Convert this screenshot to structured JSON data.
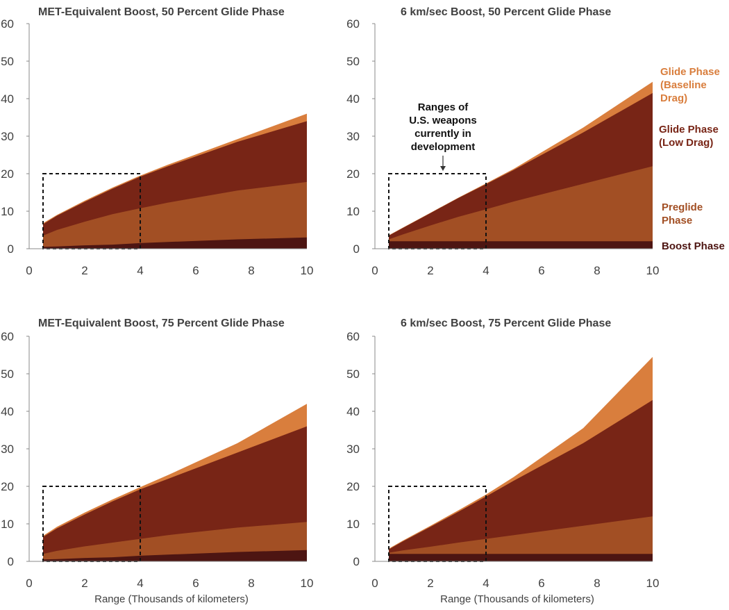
{
  "colors": {
    "glide_baseline": "#D97E3D",
    "glide_low": "#782516",
    "preglide": "#A24F24",
    "boost": "#4D1512",
    "box": "#111111",
    "axis": "#888888",
    "text": "#404040"
  },
  "legend": [
    {
      "key": "glide_baseline",
      "lines": [
        "Glide Phase",
        "(Baseline",
        "Drag)"
      ]
    },
    {
      "key": "glide_low",
      "lines": [
        "Glide Phase",
        "(Low Drag)"
      ]
    },
    {
      "key": "preglide",
      "lines": [
        "Preglide",
        "Phase"
      ]
    },
    {
      "key": "boost",
      "lines": [
        "Boost Phase"
      ]
    }
  ],
  "annotation": {
    "lines": [
      "Ranges of",
      "U.S. weapons",
      "currently in",
      "development"
    ],
    "box": {
      "x": [
        0.5,
        4
      ],
      "y": [
        0,
        20
      ]
    }
  },
  "chart_data": [
    {
      "type": "area",
      "title": "MET-Equivalent Boost, 50 Percent Glide Phase",
      "xlabel": "",
      "ylabel": "",
      "xlim": [
        0,
        10
      ],
      "ylim": [
        0,
        60
      ],
      "xticks": [
        0,
        2,
        4,
        6,
        8,
        10
      ],
      "yticks": [
        0,
        10,
        20,
        30,
        40,
        50,
        60
      ],
      "x": [
        0.5,
        1,
        2,
        3,
        4,
        5,
        7.5,
        10
      ],
      "series": [
        {
          "name": "Boost Phase",
          "key": "boost",
          "values": [
            0.5,
            0.6,
            0.9,
            1.1,
            1.5,
            1.8,
            2.5,
            3.0
          ]
        },
        {
          "name": "Preglide Phase",
          "key": "preglide",
          "values": [
            3.5,
            5.0,
            7.2,
            9.2,
            10.8,
            12.3,
            15.5,
            17.8
          ]
        },
        {
          "name": "Glide Phase (Low Drag)",
          "key": "glide_low",
          "values": [
            6.5,
            8.8,
            12.5,
            16.0,
            19.2,
            22.0,
            28.5,
            34.0
          ]
        },
        {
          "name": "Glide Phase (Baseline Drag)",
          "key": "glide_baseline",
          "values": [
            6.8,
            9.0,
            12.8,
            16.3,
            19.5,
            22.4,
            29.2,
            36.0
          ]
        }
      ]
    },
    {
      "type": "area",
      "title": "6 km/sec Boost, 50 Percent Glide Phase",
      "xlabel": "",
      "ylabel": "",
      "xlim": [
        0,
        10
      ],
      "ylim": [
        0,
        60
      ],
      "xticks": [
        0,
        2,
        4,
        6,
        8,
        10
      ],
      "yticks": [
        0,
        10,
        20,
        30,
        40,
        50,
        60
      ],
      "x": [
        0.5,
        1,
        2,
        3,
        4,
        5,
        7.5,
        10
      ],
      "series": [
        {
          "name": "Boost Phase",
          "key": "boost",
          "values": [
            2.0,
            2.0,
            2.0,
            2.0,
            2.0,
            2.0,
            2.0,
            2.0
          ]
        },
        {
          "name": "Preglide Phase",
          "key": "preglide",
          "values": [
            2.5,
            3.8,
            6.2,
            8.5,
            10.5,
            12.6,
            17.3,
            22.0
          ]
        },
        {
          "name": "Glide Phase (Low Drag)",
          "key": "glide_low",
          "values": [
            3.5,
            5.5,
            9.5,
            13.5,
            17.2,
            21.0,
            31.0,
            41.5
          ]
        },
        {
          "name": "Glide Phase (Baseline Drag)",
          "key": "glide_baseline",
          "values": [
            3.6,
            5.6,
            9.6,
            13.6,
            17.4,
            21.3,
            32.3,
            44.5
          ]
        }
      ]
    },
    {
      "type": "area",
      "title": "MET-Equivalent Boost, 75 Percent Glide Phase",
      "xlabel": "Range (Thousands of kilometers)",
      "ylabel": "",
      "xlim": [
        0,
        10
      ],
      "ylim": [
        0,
        60
      ],
      "xticks": [
        0,
        2,
        4,
        6,
        8,
        10
      ],
      "yticks": [
        0,
        10,
        20,
        30,
        40,
        50,
        60
      ],
      "x": [
        0.5,
        1,
        2,
        3,
        4,
        5,
        7.5,
        10
      ],
      "series": [
        {
          "name": "Boost Phase",
          "key": "boost",
          "values": [
            0.5,
            0.6,
            0.9,
            1.1,
            1.5,
            1.8,
            2.5,
            3.0
          ]
        },
        {
          "name": "Preglide Phase",
          "key": "preglide",
          "values": [
            2.0,
            2.8,
            4.0,
            5.0,
            6.0,
            7.0,
            9.0,
            10.5
          ]
        },
        {
          "name": "Glide Phase (Low Drag)",
          "key": "glide_low",
          "values": [
            6.5,
            8.8,
            12.5,
            16.0,
            19.2,
            22.0,
            29.0,
            36.0
          ]
        },
        {
          "name": "Glide Phase (Baseline Drag)",
          "key": "glide_baseline",
          "values": [
            6.8,
            9.2,
            13.0,
            16.5,
            19.8,
            23.0,
            31.5,
            42.0
          ]
        }
      ]
    },
    {
      "type": "area",
      "title": "6 km/sec Boost, 75 Percent Glide Phase",
      "xlabel": "Range (Thousands of kilometers)",
      "ylabel": "",
      "xlim": [
        0,
        10
      ],
      "ylim": [
        0,
        60
      ],
      "xticks": [
        0,
        2,
        4,
        6,
        8,
        10
      ],
      "yticks": [
        0,
        10,
        20,
        30,
        40,
        50,
        60
      ],
      "x": [
        0.5,
        1,
        2,
        3,
        4,
        5,
        7.5,
        10
      ],
      "series": [
        {
          "name": "Boost Phase",
          "key": "boost",
          "values": [
            2.0,
            2.0,
            2.0,
            2.0,
            2.0,
            2.0,
            2.0,
            2.0
          ]
        },
        {
          "name": "Preglide Phase",
          "key": "preglide",
          "values": [
            2.3,
            2.9,
            3.9,
            5.0,
            6.0,
            7.0,
            9.5,
            12.0
          ]
        },
        {
          "name": "Glide Phase (Low Drag)",
          "key": "glide_low",
          "values": [
            3.2,
            5.3,
            9.2,
            13.2,
            17.3,
            21.5,
            31.5,
            43.0
          ]
        },
        {
          "name": "Glide Phase (Baseline Drag)",
          "key": "glide_baseline",
          "values": [
            3.4,
            5.5,
            9.5,
            13.6,
            17.8,
            22.5,
            35.5,
            54.5
          ]
        }
      ]
    }
  ]
}
